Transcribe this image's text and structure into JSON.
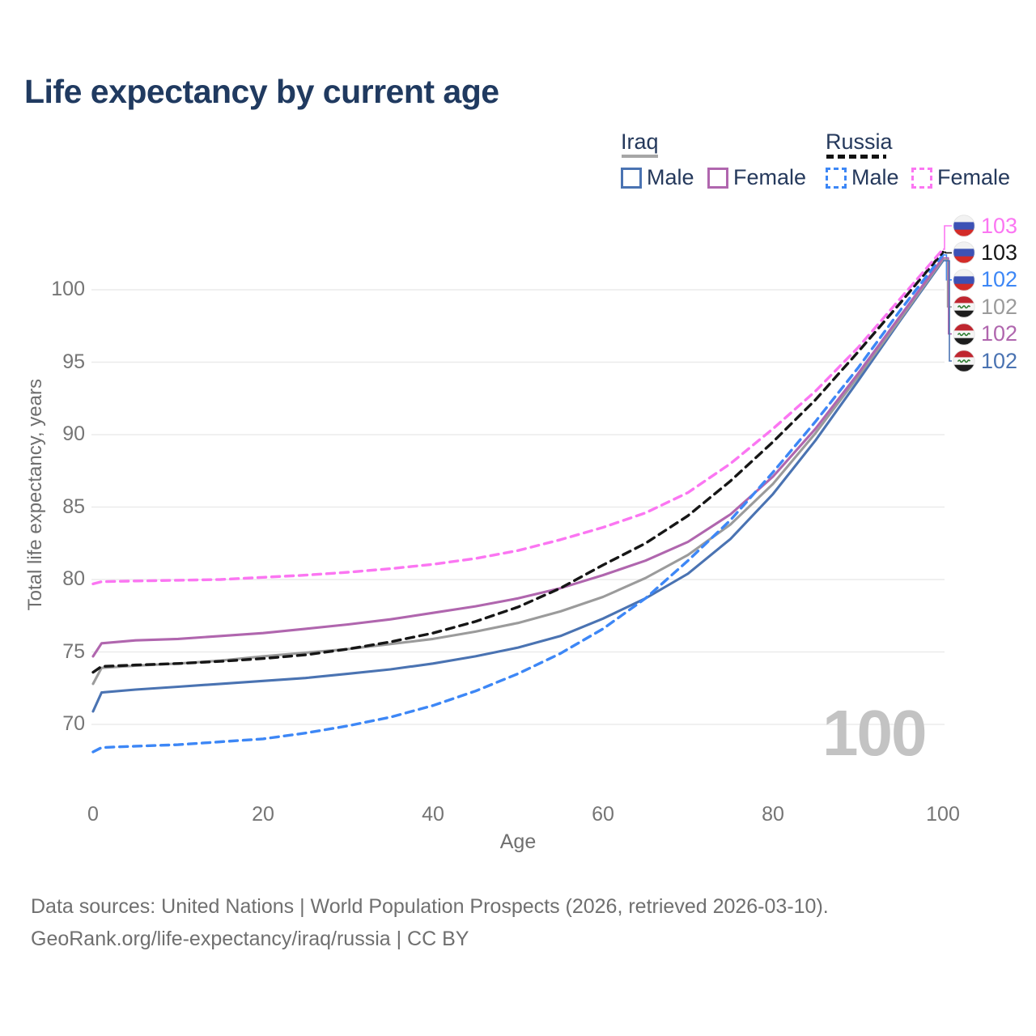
{
  "title": "Life expectancy by current age",
  "legend": {
    "iraq": {
      "label": "Iraq"
    },
    "russia": {
      "label": "Russia"
    },
    "items": [
      {
        "label": "Male",
        "country": "iraq",
        "color": "#4a73b2",
        "dash": false
      },
      {
        "label": "Female",
        "country": "iraq",
        "color": "#b066ae",
        "dash": false
      },
      {
        "label": "Male",
        "country": "russia",
        "color": "#3d87f6",
        "dash": true
      },
      {
        "label": "Female",
        "country": "russia",
        "color": "#fb76f2",
        "dash": true
      }
    ]
  },
  "watermark": "100",
  "footer": {
    "line1": "Data sources: United Nations | World Population Prospects (2026, retrieved 2026-03-10).",
    "line2": "GeoRank.org/life-expectancy/iraq/russia | CC BY"
  },
  "chart_data": {
    "type": "line",
    "title": "Life expectancy by current age",
    "xlabel": "Age",
    "ylabel": "Total life expectancy, years",
    "xlim": [
      0,
      100
    ],
    "ylim": [
      66.5,
      104
    ],
    "xticks": [
      0,
      20,
      40,
      60,
      80,
      100
    ],
    "yticks": [
      70,
      75,
      80,
      85,
      90,
      95,
      100
    ],
    "grid": "horizontal-only",
    "legend_position": "top-right",
    "x": [
      0,
      1,
      5,
      10,
      15,
      20,
      25,
      30,
      35,
      40,
      45,
      50,
      55,
      60,
      65,
      70,
      75,
      80,
      85,
      90,
      95,
      100
    ],
    "series": [
      {
        "name": "Iraq Male",
        "country": "iraq",
        "sex": "male",
        "color": "#4a73b2",
        "dash": false,
        "end_label": "102",
        "values": [
          70.9,
          72.2,
          72.4,
          72.6,
          72.8,
          73.0,
          73.2,
          73.5,
          73.8,
          74.2,
          74.7,
          75.3,
          76.1,
          77.3,
          78.7,
          80.4,
          82.8,
          85.9,
          89.6,
          93.7,
          97.9,
          102.0
        ]
      },
      {
        "name": "Iraq Both sexes",
        "country": "iraq",
        "sex": "both",
        "color": "#9b9b9b",
        "dash": false,
        "end_label": "102",
        "values": [
          72.8,
          73.9,
          74.05,
          74.2,
          74.4,
          74.7,
          74.95,
          75.2,
          75.55,
          75.9,
          76.4,
          77.0,
          77.8,
          78.8,
          80.1,
          81.7,
          83.8,
          86.6,
          90.1,
          94.0,
          98.0,
          102.1
        ]
      },
      {
        "name": "Iraq Female",
        "country": "iraq",
        "sex": "female",
        "color": "#b066ae",
        "dash": false,
        "end_label": "102",
        "values": [
          74.7,
          75.6,
          75.8,
          75.9,
          76.1,
          76.3,
          76.6,
          76.9,
          77.25,
          77.7,
          78.15,
          78.7,
          79.4,
          80.3,
          81.3,
          82.6,
          84.5,
          87.1,
          90.4,
          94.2,
          98.2,
          102.2
        ]
      },
      {
        "name": "Russia Male",
        "country": "russia",
        "sex": "male",
        "color": "#3d87f6",
        "dash": true,
        "end_label": "102",
        "values": [
          68.1,
          68.4,
          68.5,
          68.6,
          68.8,
          69.0,
          69.4,
          69.9,
          70.5,
          71.3,
          72.3,
          73.5,
          74.9,
          76.6,
          78.7,
          81.3,
          84.1,
          87.4,
          90.9,
          94.6,
          98.6,
          102.4
        ]
      },
      {
        "name": "Russia Both sexes",
        "country": "russia",
        "sex": "both",
        "color": "#161616",
        "dash": true,
        "end_label": "103",
        "values": [
          73.6,
          74.0,
          74.1,
          74.2,
          74.35,
          74.55,
          74.8,
          75.2,
          75.7,
          76.3,
          77.1,
          78.1,
          79.4,
          81.0,
          82.5,
          84.4,
          86.8,
          89.5,
          92.4,
          95.7,
          99.1,
          102.6
        ]
      },
      {
        "name": "Russia Female",
        "country": "russia",
        "sex": "female",
        "color": "#fb76f2",
        "dash": true,
        "end_label": "103",
        "values": [
          79.7,
          79.85,
          79.9,
          79.95,
          80.0,
          80.15,
          80.3,
          80.5,
          80.75,
          81.05,
          81.45,
          82.0,
          82.75,
          83.6,
          84.6,
          86.0,
          88.0,
          90.4,
          93.0,
          96.0,
          99.4,
          102.8
        ]
      }
    ],
    "end_label_order": [
      "Russia Female",
      "Russia Both sexes",
      "Russia Male",
      "Iraq Both sexes",
      "Iraq Female",
      "Iraq Male"
    ]
  }
}
